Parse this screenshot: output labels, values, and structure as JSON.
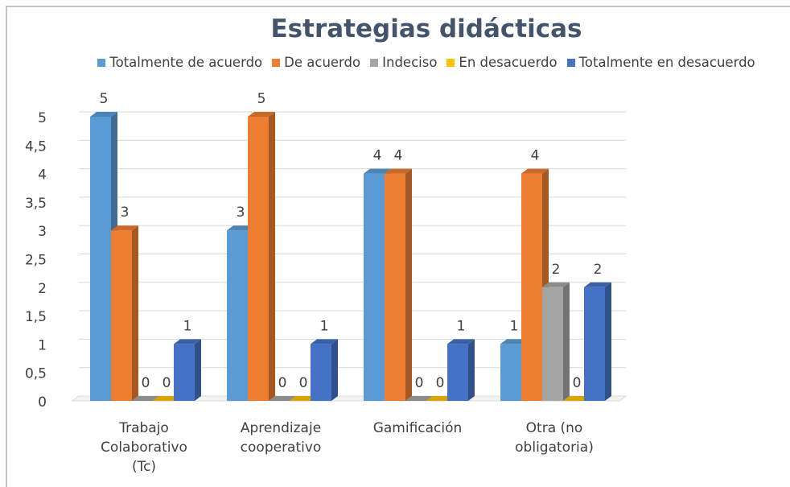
{
  "chart_data": {
    "type": "bar3d",
    "title": "Estrategias didácticas",
    "categories": [
      "Trabajo Colaborativo (Tc)",
      "Aprendizaje cooperativo",
      "Gamificación",
      "Otra (no obligatoria)"
    ],
    "series": [
      {
        "name": "Totalmente de acuerdo",
        "color": "#5b9bd5",
        "values": [
          5,
          3,
          4,
          1
        ]
      },
      {
        "name": "De acuerdo",
        "color": "#ed7d31",
        "values": [
          3,
          5,
          4,
          4
        ]
      },
      {
        "name": "Indeciso",
        "color": "#a5a5a5",
        "values": [
          0,
          0,
          0,
          2
        ]
      },
      {
        "name": "En desacuerdo",
        "color": "#ffc000",
        "values": [
          0,
          0,
          0,
          0
        ]
      },
      {
        "name": "Totalmente en desacuerdo",
        "color": "#4472c4",
        "values": [
          1,
          1,
          1,
          2
        ]
      }
    ],
    "ylim": [
      0,
      5
    ],
    "yticks": [
      0,
      {
        "value": 0.5,
        "label": "0,5"
      },
      1,
      {
        "value": 1.5,
        "label": "1,5"
      },
      2,
      {
        "value": 2.5,
        "label": "2,5"
      },
      3,
      {
        "value": 3.5,
        "label": "3,5"
      },
      4,
      {
        "value": 4.5,
        "label": "4,5"
      },
      5
    ],
    "grid": true,
    "legend": "top"
  }
}
